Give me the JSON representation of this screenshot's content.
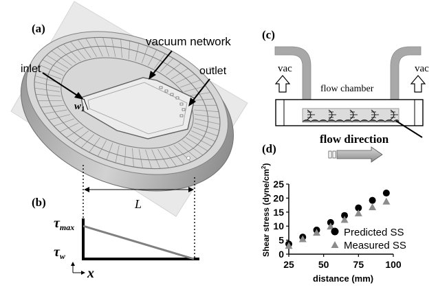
{
  "panel_a": {
    "letter": "(a)",
    "labels": {
      "vacuum_network": "vacuum network",
      "inlet": "inlet",
      "outlet": "outlet",
      "w_main": "w",
      "w_sub": "1"
    }
  },
  "panel_b": {
    "letter": "(b)",
    "length_label": "L",
    "tau_max_main": "τ",
    "tau_max_sub": "max",
    "tau_w_main": "τ",
    "tau_w_sub": "w",
    "x_label": "x"
  },
  "panel_c": {
    "letter": "(c)",
    "vac_left": "vac",
    "vac_right": "vac",
    "flow_chamber": "flow chamber",
    "flow_direction": "flow direction"
  },
  "panel_d": {
    "letter": "(d)"
  },
  "chart_data": {
    "type": "scatter",
    "xlabel": "distance (mm)",
    "ylabel_main": "Shear stress (dyne/cm",
    "ylabel_sup": "2",
    "ylabel_end": ")",
    "xlim": [
      25,
      100
    ],
    "ylim": [
      0,
      25
    ],
    "xticks": [
      25,
      50,
      75,
      100
    ],
    "yticks": [
      0,
      5,
      10,
      15,
      20,
      25
    ],
    "legend_position": "bottom-right",
    "series": [
      {
        "name": "Predicted SS",
        "marker": "circle",
        "color": "#000000",
        "x": [
          25,
          35,
          45,
          55,
          65,
          75,
          85,
          95
        ],
        "y": [
          3.6,
          6.1,
          8.6,
          11.3,
          13.8,
          16.5,
          19.2,
          21.8
        ]
      },
      {
        "name": "Measured SS",
        "marker": "triangle",
        "color": "#8c8c8c",
        "x": [
          25,
          35,
          45,
          55,
          65,
          75,
          85,
          95
        ],
        "y": [
          3.0,
          5.4,
          7.7,
          9.9,
          12.3,
          14.6,
          16.8,
          18.8
        ]
      }
    ]
  },
  "colors": {
    "device_light": "#e0e0e0",
    "device_mid": "#b8b8b8",
    "device_dark": "#8a8a8a",
    "tube": "#a8a8a8",
    "line_gray": "#7f7f7f",
    "marker_gray": "#8c8c8c"
  }
}
